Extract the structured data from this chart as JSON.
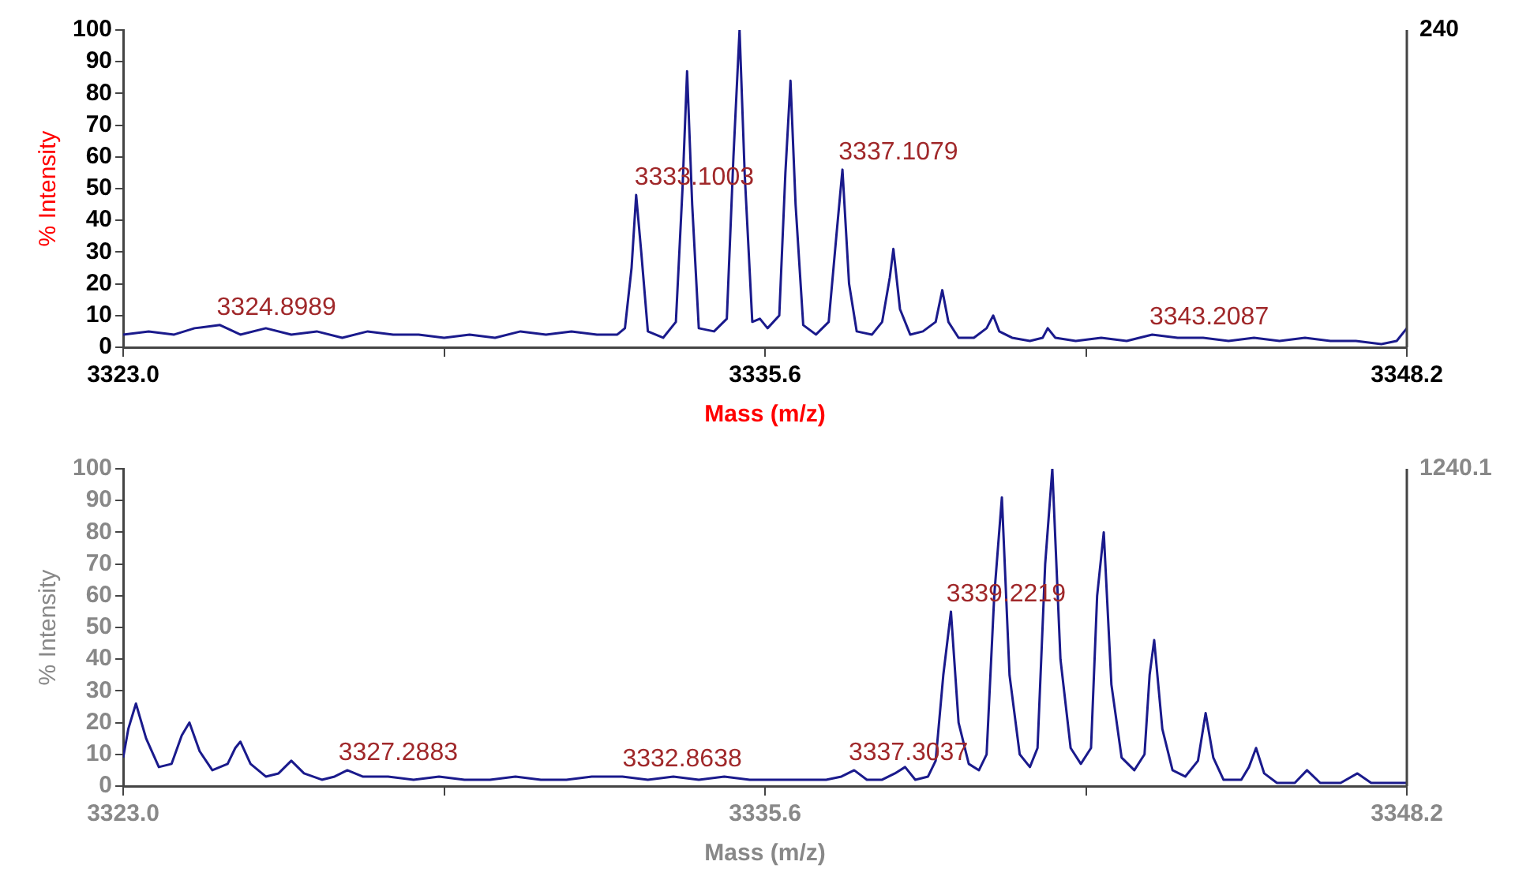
{
  "chart_data": [
    {
      "type": "line",
      "xlabel": "Mass (m/z)",
      "ylabel": "% Intensity",
      "xlim": [
        3323.0,
        3348.2
      ],
      "xticks": [
        {
          "value": 3323.0,
          "label": "3323.0"
        },
        {
          "value": 3329.3,
          "label": null
        },
        {
          "value": 3335.6,
          "label": "3335.6"
        },
        {
          "value": 3341.9,
          "label": null
        },
        {
          "value": 3348.2,
          "label": "3348.2"
        }
      ],
      "ylim": [
        0,
        100
      ],
      "yticks": [
        0,
        10,
        20,
        30,
        40,
        50,
        60,
        70,
        80,
        90,
        100
      ],
      "grid": false,
      "legend": false,
      "marker": "none",
      "line_style": "solid",
      "annotations": [
        "240",
        {
          "text": "3324.8989",
          "x": 3324.8989,
          "y": 7
        },
        {
          "text": "3333.1003",
          "x": 3333.1003,
          "y": 48
        },
        {
          "text": "3337.1079",
          "x": 3337.1079,
          "y": 56
        },
        {
          "text": "3343.2087",
          "x": 3343.2087,
          "y": 4
        }
      ],
      "series": [
        {
          "color": "#1a1a8c",
          "x": [
            3323.0,
            3323.5,
            3324.0,
            3324.4,
            3324.9,
            3325.3,
            3325.8,
            3326.3,
            3326.8,
            3327.3,
            3327.8,
            3328.3,
            3328.8,
            3329.3,
            3329.8,
            3330.3,
            3330.8,
            3331.3,
            3331.8,
            3332.3,
            3332.7,
            3332.85,
            3332.98,
            3333.07,
            3333.17,
            3333.3,
            3333.6,
            3333.85,
            3333.98,
            3334.07,
            3334.17,
            3334.3,
            3334.6,
            3334.85,
            3334.98,
            3335.1,
            3335.2,
            3335.35,
            3335.5,
            3335.65,
            3335.88,
            3336.0,
            3336.1,
            3336.2,
            3336.35,
            3336.6,
            3336.85,
            3337.0,
            3337.12,
            3337.25,
            3337.4,
            3337.7,
            3337.9,
            3338.05,
            3338.12,
            3338.25,
            3338.45,
            3338.7,
            3338.95,
            3339.08,
            3339.2,
            3339.4,
            3339.7,
            3339.95,
            3340.08,
            3340.2,
            3340.45,
            3340.8,
            3341.05,
            3341.15,
            3341.3,
            3341.7,
            3342.2,
            3342.7,
            3343.2,
            3343.7,
            3344.2,
            3344.7,
            3345.2,
            3345.7,
            3346.2,
            3346.7,
            3347.2,
            3347.7,
            3348.0,
            3348.2
          ],
          "values": [
            4,
            5,
            4,
            6,
            7,
            4,
            6,
            4,
            5,
            3,
            5,
            4,
            4,
            3,
            4,
            3,
            5,
            4,
            5,
            4,
            4,
            6,
            25,
            48,
            30,
            5,
            3,
            8,
            50,
            87,
            45,
            6,
            5,
            9,
            60,
            100,
            55,
            8,
            9,
            6,
            10,
            55,
            84,
            45,
            7,
            4,
            8,
            35,
            56,
            20,
            5,
            4,
            8,
            22,
            31,
            12,
            4,
            5,
            8,
            18,
            8,
            3,
            3,
            6,
            10,
            5,
            3,
            2,
            3,
            6,
            3,
            2,
            3,
            2,
            4,
            3,
            3,
            2,
            3,
            2,
            3,
            2,
            2,
            1,
            2,
            6
          ]
        }
      ]
    },
    {
      "type": "line",
      "xlabel": "Mass (m/z)",
      "ylabel": "% Intensity",
      "xlim": [
        3323.0,
        3348.2
      ],
      "xticks": [
        {
          "value": 3323.0,
          "label": "3323.0"
        },
        {
          "value": 3329.3,
          "label": null
        },
        {
          "value": 3335.6,
          "label": "3335.6"
        },
        {
          "value": 3341.9,
          "label": null
        },
        {
          "value": 3348.2,
          "label": "3348.2"
        }
      ],
      "ylim": [
        0,
        100
      ],
      "yticks": [
        0,
        10,
        20,
        30,
        40,
        50,
        60,
        70,
        80,
        90,
        100
      ],
      "grid": false,
      "legend": false,
      "marker": "none",
      "line_style": "solid",
      "annotations": [
        "1240.1",
        {
          "text": "3327.2883",
          "x": 3327.2883,
          "y": 5
        },
        {
          "text": "3332.8638",
          "x": 3332.8638,
          "y": 3
        },
        {
          "text": "3337.3037",
          "x": 3337.3037,
          "y": 5
        },
        {
          "text": "3339.2219",
          "x": 3339.2219,
          "y": 55
        }
      ],
      "series": [
        {
          "color": "#1a1a8c",
          "x": [
            3323.0,
            3323.1,
            3323.25,
            3323.45,
            3323.7,
            3323.95,
            3324.15,
            3324.3,
            3324.5,
            3324.75,
            3325.05,
            3325.2,
            3325.3,
            3325.5,
            3325.8,
            3326.05,
            3326.3,
            3326.55,
            3326.9,
            3327.15,
            3327.4,
            3327.7,
            3328.2,
            3328.7,
            3329.2,
            3329.7,
            3330.2,
            3330.7,
            3331.2,
            3331.7,
            3332.2,
            3332.8,
            3333.3,
            3333.8,
            3334.3,
            3334.8,
            3335.3,
            3335.8,
            3336.3,
            3336.8,
            3337.1,
            3337.35,
            3337.6,
            3337.9,
            3338.15,
            3338.35,
            3338.55,
            3338.8,
            3338.95,
            3339.1,
            3339.25,
            3339.4,
            3339.6,
            3339.8,
            3339.95,
            3340.1,
            3340.25,
            3340.4,
            3340.6,
            3340.8,
            3340.95,
            3341.1,
            3341.24,
            3341.4,
            3341.6,
            3341.8,
            3342.0,
            3342.12,
            3342.25,
            3342.4,
            3342.6,
            3342.85,
            3343.05,
            3343.15,
            3343.24,
            3343.4,
            3343.6,
            3343.85,
            3344.1,
            3344.25,
            3344.4,
            3344.6,
            3344.95,
            3345.1,
            3345.24,
            3345.4,
            3345.65,
            3346.0,
            3346.24,
            3346.5,
            3346.9,
            3347.23,
            3347.5,
            3347.9,
            3348.2
          ],
          "values": [
            9,
            18,
            26,
            15,
            6,
            7,
            16,
            20,
            11,
            5,
            7,
            12,
            14,
            7,
            3,
            4,
            8,
            4,
            2,
            3,
            5,
            3,
            3,
            2,
            3,
            2,
            2,
            3,
            2,
            2,
            3,
            3,
            2,
            3,
            2,
            3,
            2,
            2,
            2,
            2,
            3,
            5,
            2,
            2,
            4,
            6,
            2,
            3,
            8,
            35,
            55,
            20,
            7,
            5,
            10,
            60,
            91,
            35,
            10,
            6,
            12,
            70,
            100,
            40,
            12,
            7,
            12,
            60,
            80,
            32,
            9,
            5,
            10,
            35,
            46,
            18,
            5,
            3,
            8,
            23,
            9,
            2,
            2,
            6,
            12,
            4,
            1,
            1,
            5,
            1,
            1,
            4,
            1,
            1,
            1
          ]
        }
      ]
    }
  ]
}
